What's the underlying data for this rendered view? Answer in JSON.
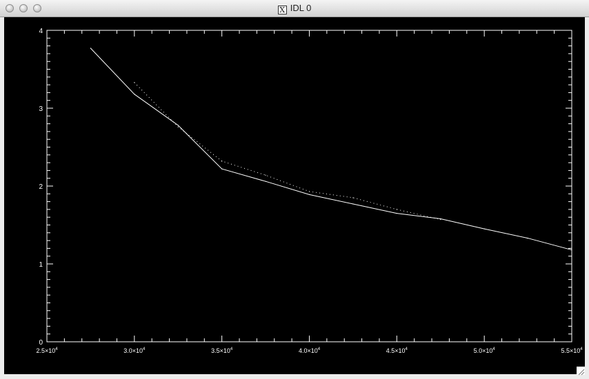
{
  "window": {
    "title": "IDL 0",
    "title_icon": "x11-icon"
  },
  "chart_data": {
    "type": "line",
    "xlim": [
      25000,
      55000
    ],
    "ylim": [
      0,
      4
    ],
    "x_ticks": [
      25000,
      30000,
      35000,
      40000,
      45000,
      50000,
      55000
    ],
    "x_tick_labels": [
      {
        "mant": "2.5×10",
        "exp": "4"
      },
      {
        "mant": "3.0×10",
        "exp": "4"
      },
      {
        "mant": "3.5×10",
        "exp": "4"
      },
      {
        "mant": "4.0×10",
        "exp": "4"
      },
      {
        "mant": "4.5×10",
        "exp": "4"
      },
      {
        "mant": "5.0×10",
        "exp": "4"
      },
      {
        "mant": "5.5×10",
        "exp": "4"
      }
    ],
    "y_ticks": [
      0,
      1,
      2,
      3,
      4
    ],
    "y_tick_labels": [
      "0",
      "1",
      "2",
      "3",
      "4"
    ],
    "series": [
      {
        "style": "solid",
        "x": [
          27500,
          30000,
          32500,
          35000,
          37500,
          40000,
          42500,
          45000,
          47500,
          50000,
          52500,
          55000
        ],
        "y": [
          3.77,
          3.18,
          2.78,
          2.22,
          2.06,
          1.89,
          1.77,
          1.65,
          1.58,
          1.45,
          1.33,
          1.18
        ]
      },
      {
        "style": "dotted",
        "x": [
          30000,
          32500,
          35000,
          37500,
          40000,
          42500,
          45000,
          47500
        ],
        "y": [
          3.33,
          2.76,
          2.32,
          2.14,
          1.93,
          1.85,
          1.7,
          1.57
        ]
      }
    ],
    "color": "#ffffff",
    "background": "#000000"
  }
}
